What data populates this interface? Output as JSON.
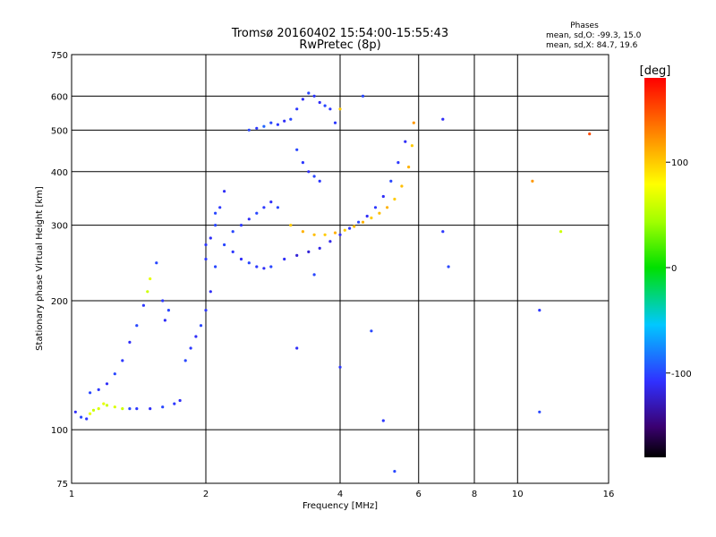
{
  "chart_data": {
    "type": "scatter",
    "title": "Tromsø 20160402 15:54:00-15:55:43",
    "subtitle": "RwPretec (8p)",
    "xlabel": "Frequency [MHz]",
    "ylabel": "Stationary phase Virtual Height [km]",
    "x_scale": "log",
    "y_scale": "log",
    "xlim": [
      1,
      16
    ],
    "ylim": [
      75,
      750
    ],
    "x_ticks": [
      1,
      2,
      4,
      6,
      8,
      10,
      16
    ],
    "y_ticks": [
      75,
      100,
      200,
      300,
      400,
      500,
      600,
      750
    ],
    "grid": true,
    "stats": {
      "heading": "Phases",
      "line_o": "mean, sd,O: -99.3, 15.0",
      "line_x": "mean, sd,X: 84.7, 19.6"
    },
    "colorbar": {
      "label": "[deg]",
      "range": [
        -180,
        180
      ],
      "ticks": [
        -100,
        0,
        100
      ]
    },
    "series": [
      {
        "points": [
          [
            1.02,
            110,
            -110
          ],
          [
            1.05,
            107,
            -100
          ],
          [
            1.08,
            106,
            -105
          ],
          [
            1.1,
            109,
            70
          ],
          [
            1.12,
            111,
            60
          ],
          [
            1.15,
            112,
            65
          ],
          [
            1.18,
            115,
            70
          ],
          [
            1.2,
            114,
            60
          ],
          [
            1.25,
            113,
            65
          ],
          [
            1.3,
            112,
            60
          ],
          [
            1.35,
            112,
            -100
          ],
          [
            1.4,
            112,
            -105
          ],
          [
            1.5,
            112,
            -110
          ],
          [
            1.6,
            113,
            -100
          ],
          [
            1.7,
            115,
            -105
          ],
          [
            1.75,
            117,
            -110
          ],
          [
            1.1,
            122,
            -100
          ],
          [
            1.15,
            124,
            -105
          ],
          [
            1.2,
            128,
            -110
          ],
          [
            1.25,
            135,
            -100
          ],
          [
            1.3,
            145,
            -105
          ],
          [
            1.35,
            160,
            -110
          ],
          [
            1.4,
            175,
            -100
          ],
          [
            1.45,
            195,
            -105
          ],
          [
            1.48,
            210,
            60
          ],
          [
            1.5,
            225,
            70
          ],
          [
            1.55,
            245,
            -100
          ],
          [
            1.6,
            200,
            -105
          ],
          [
            1.65,
            190,
            -100
          ],
          [
            1.62,
            180,
            -110
          ],
          [
            1.8,
            145,
            -100
          ],
          [
            1.85,
            155,
            -105
          ],
          [
            1.9,
            165,
            -110
          ],
          [
            1.95,
            175,
            -100
          ],
          [
            2.0,
            190,
            -105
          ],
          [
            2.05,
            210,
            -110
          ],
          [
            2.1,
            240,
            -100
          ],
          [
            2.0,
            250,
            -105
          ],
          [
            2.05,
            280,
            -110
          ],
          [
            2.1,
            300,
            -100
          ],
          [
            2.15,
            330,
            -105
          ],
          [
            2.2,
            360,
            -110
          ],
          [
            2.1,
            320,
            -100
          ],
          [
            2.0,
            270,
            -105
          ],
          [
            2.2,
            270,
            -100
          ],
          [
            2.3,
            260,
            -105
          ],
          [
            2.4,
            250,
            -110
          ],
          [
            2.5,
            245,
            -100
          ],
          [
            2.6,
            240,
            -105
          ],
          [
            2.7,
            238,
            -110
          ],
          [
            2.8,
            240,
            -100
          ],
          [
            2.3,
            290,
            -100
          ],
          [
            2.4,
            300,
            -105
          ],
          [
            2.5,
            310,
            -110
          ],
          [
            2.6,
            320,
            -100
          ],
          [
            2.7,
            330,
            -105
          ],
          [
            2.8,
            340,
            -110
          ],
          [
            2.9,
            330,
            -100
          ],
          [
            2.5,
            500,
            -100
          ],
          [
            2.6,
            505,
            -105
          ],
          [
            2.7,
            510,
            -90
          ],
          [
            2.8,
            520,
            -100
          ],
          [
            2.9,
            515,
            -105
          ],
          [
            3.0,
            525,
            -110
          ],
          [
            3.1,
            530,
            -100
          ],
          [
            3.2,
            560,
            -105
          ],
          [
            3.3,
            590,
            -110
          ],
          [
            3.4,
            610,
            -100
          ],
          [
            3.5,
            600,
            -105
          ],
          [
            3.6,
            580,
            -110
          ],
          [
            3.7,
            570,
            -100
          ],
          [
            3.8,
            560,
            -105
          ],
          [
            3.2,
            450,
            -100
          ],
          [
            3.3,
            420,
            -105
          ],
          [
            3.4,
            400,
            -110
          ],
          [
            3.5,
            390,
            -100
          ],
          [
            3.6,
            380,
            -105
          ],
          [
            3.0,
            250,
            -110
          ],
          [
            3.2,
            255,
            -120
          ],
          [
            3.4,
            260,
            -120
          ],
          [
            3.6,
            265,
            -115
          ],
          [
            3.8,
            275,
            -115
          ],
          [
            4.0,
            285,
            -110
          ],
          [
            4.2,
            295,
            -105
          ],
          [
            4.4,
            305,
            -100
          ],
          [
            4.6,
            315,
            -110
          ],
          [
            4.8,
            330,
            -105
          ],
          [
            5.0,
            350,
            -110
          ],
          [
            5.2,
            380,
            -100
          ],
          [
            5.4,
            420,
            -105
          ],
          [
            5.6,
            470,
            -110
          ],
          [
            3.1,
            300,
            100
          ],
          [
            3.3,
            290,
            110
          ],
          [
            3.5,
            285,
            105
          ],
          [
            3.7,
            285,
            100
          ],
          [
            3.9,
            288,
            110
          ],
          [
            4.1,
            292,
            100
          ],
          [
            4.3,
            298,
            105
          ],
          [
            4.5,
            305,
            110
          ],
          [
            4.7,
            312,
            100
          ],
          [
            4.9,
            320,
            105
          ],
          [
            5.1,
            330,
            110
          ],
          [
            5.3,
            345,
            100
          ],
          [
            5.5,
            370,
            105
          ],
          [
            5.7,
            410,
            110
          ],
          [
            5.8,
            460,
            100
          ],
          [
            5.85,
            520,
            120
          ],
          [
            4.0,
            560,
            100
          ],
          [
            4.5,
            600,
            -100
          ],
          [
            3.9,
            520,
            -105
          ],
          [
            4.7,
            170,
            -100
          ],
          [
            5.0,
            105,
            -105
          ],
          [
            6.8,
            530,
            -110
          ],
          [
            7.0,
            240,
            -100
          ],
          [
            6.8,
            290,
            -105
          ],
          [
            11.2,
            110,
            -100
          ],
          [
            11.2,
            190,
            -105
          ],
          [
            10.8,
            380,
            120
          ],
          [
            12.5,
            290,
            60
          ],
          [
            14.5,
            490,
            150
          ],
          [
            5.3,
            80,
            -100
          ],
          [
            4.0,
            140,
            -105
          ],
          [
            3.2,
            155,
            -110
          ],
          [
            3.5,
            230,
            -100
          ]
        ]
      }
    ]
  }
}
